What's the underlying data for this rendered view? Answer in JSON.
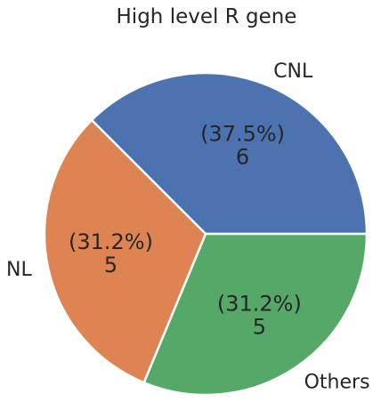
{
  "chart_data": {
    "type": "pie",
    "title": "High level R gene",
    "labels": [
      "CNL",
      "NL",
      "Others"
    ],
    "values": [
      6,
      5,
      5
    ],
    "percent_labels": [
      "(37.5%)",
      "(31.2%)",
      "(31.2%)"
    ],
    "count_labels": [
      "6",
      "5",
      "5"
    ],
    "colors": [
      "#4c72b0",
      "#dd8452",
      "#55a868"
    ],
    "start_angle_deg": 0,
    "direction": "counterclockwise",
    "edge_color": "#ffffff",
    "legend": "none"
  }
}
